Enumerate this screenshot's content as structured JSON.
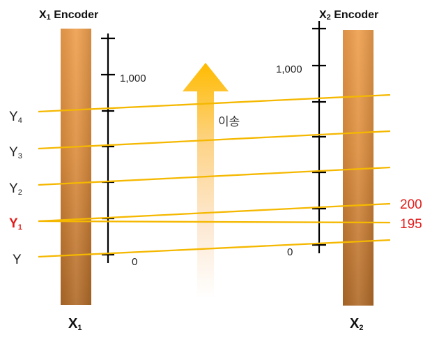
{
  "encoders": {
    "x1_title": "X",
    "x1_title_sub": "1",
    "x1_title_rest": " Encoder",
    "x2_title": "X",
    "x2_title_sub": "2",
    "x2_title_rest": " Encoder"
  },
  "scale_labels": {
    "left_1000": "1,000",
    "left_0": "0",
    "right_1000": "1,000",
    "right_0": "0"
  },
  "y_labels": {
    "y4": "Y",
    "y4_sub": "4",
    "y3": "Y",
    "y3_sub": "3",
    "y2": "Y",
    "y2_sub": "2",
    "y1": "Y",
    "y1_sub": "1",
    "y": "Y"
  },
  "values": {
    "upper": "200",
    "lower": "195"
  },
  "transfer_label": "이송",
  "bottom_labels": {
    "x1": "X",
    "x1_sub": "1",
    "x2": "X",
    "x2_sub": "2"
  },
  "colors": {
    "bar_light": "#eda35a",
    "bar_dark": "#b8752e",
    "rail_line": "#f5b800",
    "arrow_top": "#ffbf00",
    "highlight_red": "#e31b1b"
  }
}
